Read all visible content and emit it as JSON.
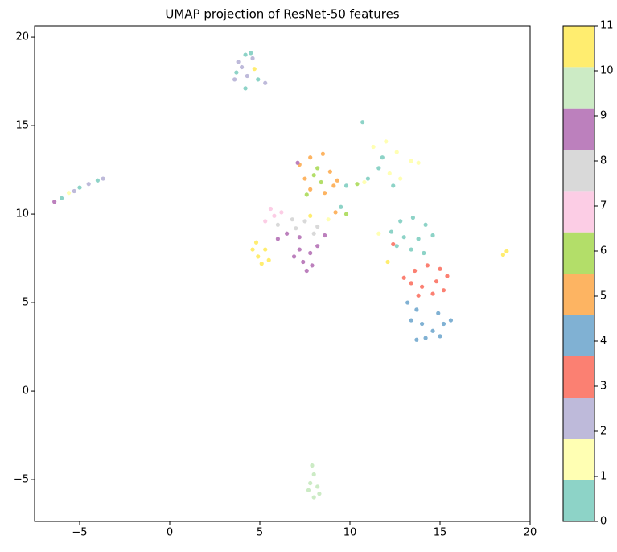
{
  "chart_data": {
    "type": "scatter",
    "title": "UMAP projection of ResNet-50 features",
    "x": [
      3.8,
      4.2,
      4.6,
      3.7,
      4.3,
      4.9,
      5.3,
      4.2,
      4.0,
      4.7,
      3.6,
      4.5,
      -6.4,
      -6.0,
      -5.6,
      -5.0,
      -4.5,
      -4.0,
      -3.7,
      -5.3,
      7.2,
      7.8,
      8.5,
      7.5,
      8.9,
      8.0,
      8.4,
      7.8,
      8.6,
      9.1,
      7.1,
      8.2,
      9.3,
      7.6,
      9.8,
      10.4,
      9.5,
      9.8,
      10.7,
      11.3,
      12.0,
      12.6,
      13.4,
      13.8,
      11.6,
      12.2,
      11.0,
      12.8,
      11.8,
      12.4,
      10.8,
      5.6,
      6.2,
      5.3,
      6.0,
      6.8,
      7.5,
      8.2,
      8.8,
      6.5,
      7.2,
      6.0,
      8.0,
      8.6,
      5.8,
      7.0,
      9.2,
      7.8,
      7.2,
      7.8,
      7.4,
      7.9,
      7.6,
      6.9,
      8.2,
      4.8,
      5.3,
      4.9,
      5.5,
      5.1,
      4.6,
      12.8,
      13.5,
      14.2,
      12.3,
      13.0,
      13.8,
      14.6,
      12.6,
      13.4,
      14.1,
      11.6,
      12.1,
      12.4,
      13.6,
      14.3,
      15.0,
      13.4,
      14.0,
      14.8,
      15.4,
      13.8,
      14.6,
      15.2,
      13.0,
      13.2,
      13.7,
      13.4,
      14.0,
      14.6,
      15.2,
      15.6,
      14.2,
      13.7,
      14.9,
      15.0,
      7.9,
      8.0,
      7.8,
      8.2,
      7.7,
      8.3,
      8.0,
      18.5,
      18.7
    ],
    "y": [
      18.6,
      19.0,
      18.8,
      18.0,
      17.8,
      17.6,
      17.4,
      17.1,
      18.3,
      18.2,
      17.6,
      19.1,
      10.7,
      10.9,
      11.2,
      11.5,
      11.7,
      11.9,
      12.0,
      11.3,
      12.8,
      13.2,
      13.4,
      12.0,
      12.4,
      12.2,
      11.8,
      11.4,
      11.2,
      11.6,
      12.9,
      12.6,
      11.9,
      11.1,
      11.6,
      11.7,
      10.4,
      10.0,
      15.2,
      13.8,
      14.1,
      13.5,
      13.0,
      12.9,
      12.6,
      12.3,
      12.0,
      12.0,
      13.2,
      11.6,
      11.8,
      10.3,
      10.1,
      9.6,
      9.4,
      9.7,
      9.6,
      9.3,
      9.7,
      8.9,
      8.7,
      8.6,
      8.9,
      8.8,
      9.9,
      9.2,
      10.1,
      9.9,
      8.0,
      7.8,
      7.3,
      7.1,
      6.8,
      7.6,
      8.2,
      8.4,
      8.0,
      7.6,
      7.4,
      7.2,
      8.0,
      9.6,
      9.8,
      9.4,
      9.0,
      8.7,
      8.6,
      8.8,
      8.2,
      8.0,
      7.8,
      8.9,
      7.3,
      8.3,
      6.8,
      7.1,
      6.9,
      6.1,
      5.9,
      6.2,
      6.5,
      5.4,
      5.5,
      5.7,
      6.4,
      5.0,
      4.6,
      4.0,
      3.8,
      3.4,
      3.8,
      4.0,
      3.0,
      2.9,
      4.4,
      3.1,
      -4.2,
      -4.7,
      -5.2,
      -5.4,
      -5.6,
      -5.8,
      -6.0,
      7.7,
      7.9
    ],
    "c": [
      2,
      0,
      2,
      0,
      2,
      0,
      2,
      0,
      2,
      11,
      2,
      0,
      9,
      0,
      1,
      0,
      2,
      0,
      2,
      2,
      5,
      5,
      5,
      5,
      5,
      6,
      6,
      5,
      5,
      5,
      9,
      6,
      5,
      6,
      0,
      6,
      0,
      6,
      0,
      1,
      1,
      1,
      1,
      1,
      0,
      1,
      0,
      1,
      0,
      0,
      1,
      7,
      7,
      7,
      8,
      8,
      8,
      8,
      1,
      9,
      9,
      9,
      8,
      9,
      7,
      8,
      5,
      11,
      9,
      9,
      9,
      9,
      9,
      9,
      9,
      11,
      11,
      11,
      11,
      11,
      11,
      0,
      0,
      0,
      0,
      0,
      0,
      0,
      0,
      0,
      0,
      1,
      11,
      3,
      3,
      3,
      3,
      3,
      3,
      3,
      3,
      3,
      3,
      3,
      3,
      4,
      4,
      4,
      4,
      4,
      4,
      4,
      4,
      4,
      4,
      4,
      10,
      10,
      10,
      10,
      10,
      10,
      10,
      11,
      11
    ],
    "colormap": [
      "#8dd3c7",
      "#ffffb3",
      "#bebada",
      "#fb8072",
      "#80b1d3",
      "#fdb462",
      "#b3de69",
      "#fccde5",
      "#d9d9d9",
      "#bc80bd",
      "#ccebc5",
      "#ffed6f"
    ],
    "xlim": [
      -7.5,
      20
    ],
    "ylim": [
      -7.36,
      20.64
    ],
    "clim": [
      0,
      11
    ],
    "xticks": [
      {
        "value": -5,
        "label": "−5"
      },
      0,
      5,
      10,
      15,
      20
    ],
    "yticks": [
      {
        "value": -5,
        "label": "−5"
      },
      0,
      5,
      10,
      15,
      20
    ],
    "cticks": [
      0,
      1,
      2,
      3,
      4,
      5,
      6,
      7,
      8,
      9,
      10,
      11
    ]
  }
}
